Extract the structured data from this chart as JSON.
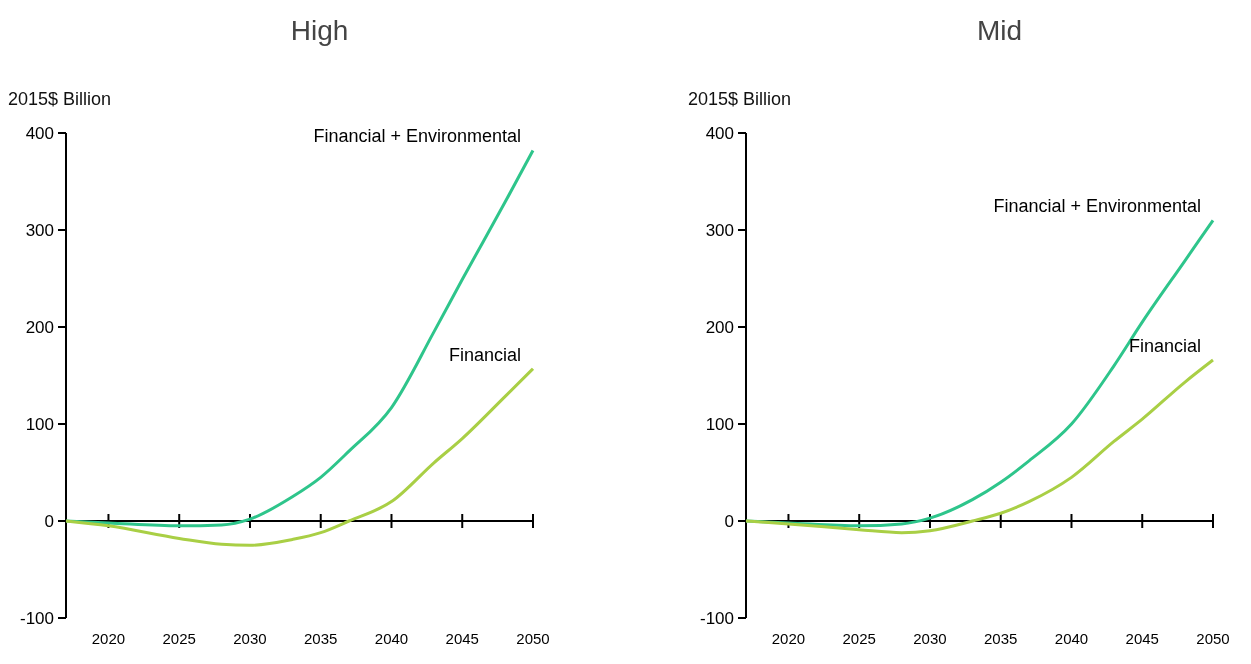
{
  "chart_data": [
    {
      "type": "line",
      "title": "High",
      "ylabel": "2015$ Billion",
      "xlim": [
        2017,
        2050
      ],
      "xticks": [
        2020,
        2025,
        2030,
        2035,
        2040,
        2045,
        2050
      ],
      "ylim": [
        -100,
        400
      ],
      "yticks": [
        -100,
        0,
        100,
        200,
        300,
        400
      ],
      "legend": false,
      "marker": "none",
      "line_style": "solid",
      "x": [
        2017,
        2020,
        2025,
        2028,
        2030,
        2033,
        2035,
        2037,
        2040,
        2043,
        2045,
        2048,
        2050
      ],
      "series": [
        {
          "name": "Financial + Environmental",
          "color": "#2ec58b",
          "values": [
            0,
            -2,
            -5,
            -4,
            2,
            25,
            45,
            72,
            117,
            195,
            249,
            328,
            382
          ]
        },
        {
          "name": "Financial",
          "color": "#a9cf45",
          "values": [
            0,
            -5,
            -18,
            -24,
            -25,
            -19,
            -12,
            0,
            20,
            60,
            85,
            128,
            157
          ]
        }
      ]
    },
    {
      "type": "line",
      "title": "Mid",
      "ylabel": "2015$ Billion",
      "xlim": [
        2017,
        2050
      ],
      "xticks": [
        2020,
        2025,
        2030,
        2035,
        2040,
        2045,
        2050
      ],
      "ylim": [
        -100,
        400
      ],
      "yticks": [
        -100,
        0,
        100,
        200,
        300,
        400
      ],
      "legend": false,
      "marker": "none",
      "line_style": "solid",
      "x": [
        2017,
        2020,
        2025,
        2028,
        2030,
        2033,
        2035,
        2037,
        2040,
        2043,
        2045,
        2048,
        2050
      ],
      "series": [
        {
          "name": "Financial + Environmental",
          "color": "#2ec58b",
          "values": [
            0,
            -2,
            -5,
            -3,
            3,
            22,
            40,
            62,
            100,
            160,
            205,
            268,
            310
          ]
        },
        {
          "name": "Financial",
          "color": "#a9cf45",
          "values": [
            0,
            -3,
            -9,
            -12,
            -10,
            0,
            8,
            20,
            45,
            82,
            105,
            143,
            166
          ]
        }
      ]
    }
  ]
}
